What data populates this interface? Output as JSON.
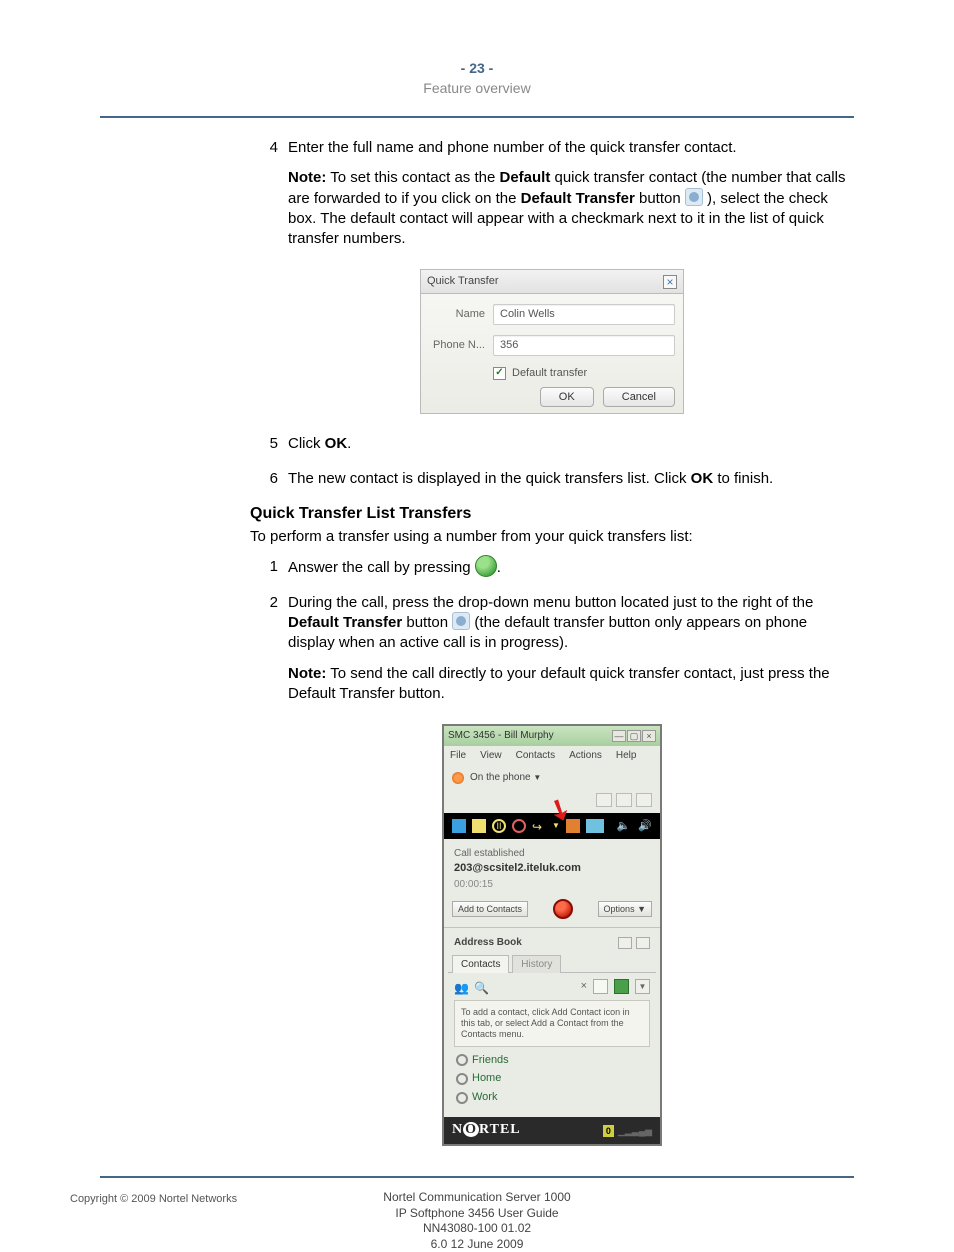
{
  "header": {
    "page_num": "- 23 -",
    "subtitle": "Feature overview"
  },
  "steps_a": [
    {
      "num": "4",
      "text": "Enter the full name and phone number of the quick transfer contact.",
      "note_prefix": "Note:",
      "note_1a": " To set this contact as the ",
      "note_1b": "Default",
      "note_1c": " quick transfer contact (the number that calls are forwarded to if you click on the ",
      "note_1d": "Default Transfer",
      "note_1e": " button ",
      "note_2": " ), select the check box. The default contact will appear with a checkmark next to it in the list of quick transfer numbers."
    }
  ],
  "fig1": {
    "title": "Quick Transfer",
    "name_label": "Name",
    "name_value": "Colin Wells",
    "phone_label": "Phone N...",
    "phone_value": "356",
    "checkbox_label": "Default transfer",
    "ok": "OK",
    "cancel": "Cancel"
  },
  "steps_b": [
    {
      "num": "5",
      "pre": "Click ",
      "bold": "OK",
      "post": "."
    },
    {
      "num": "6",
      "pre": "The new contact is displayed in the quick transfers list. Click ",
      "bold": "OK",
      "post": " to finish."
    }
  ],
  "section": {
    "title": "Quick Transfer List Transfers",
    "intro": "To perform a transfer using a number from your quick transfers list:"
  },
  "steps_c": [
    {
      "num": "1",
      "pre": "Answer the call by pressing ",
      "post": "."
    },
    {
      "num": "2",
      "t1": "During the call, press the drop-down menu button located just to the right of the ",
      "b1": "Default Transfer",
      "t2": " button ",
      "t3": " (the default transfer button only appears on phone display when an active call is in progress).",
      "note_prefix": "Note:",
      "note": " To send the call directly to your default quick transfer contact, just press the Default Transfer button."
    }
  ],
  "fig2": {
    "title": "SMC 3456 - Bill Murphy",
    "menus": [
      "File",
      "View",
      "Contacts",
      "Actions",
      "Help"
    ],
    "presence": "On the phone",
    "call_status": "Call established",
    "sip": "203@scsitel2.iteluk.com",
    "timer": "00:00:15",
    "add_contacts": "Add to Contacts",
    "options": "Options",
    "addr_book": "Address Book",
    "tab_contacts": "Contacts",
    "tab_history": "History",
    "hint": "To add a contact, click Add Contact icon in this tab, or select Add a Contact from the Contacts menu.",
    "groups": [
      "Friends",
      "Home",
      "Work"
    ],
    "brand": "NORTEL",
    "signal": "0"
  },
  "footer": {
    "l1": "Nortel Communication Server 1000",
    "l2": "IP Softphone 3456 User Guide",
    "l3": "NN43080-100   01.02",
    "l4": "6.0   12 June 2009"
  },
  "copyright": "Copyright © 2009 Nortel Networks"
}
